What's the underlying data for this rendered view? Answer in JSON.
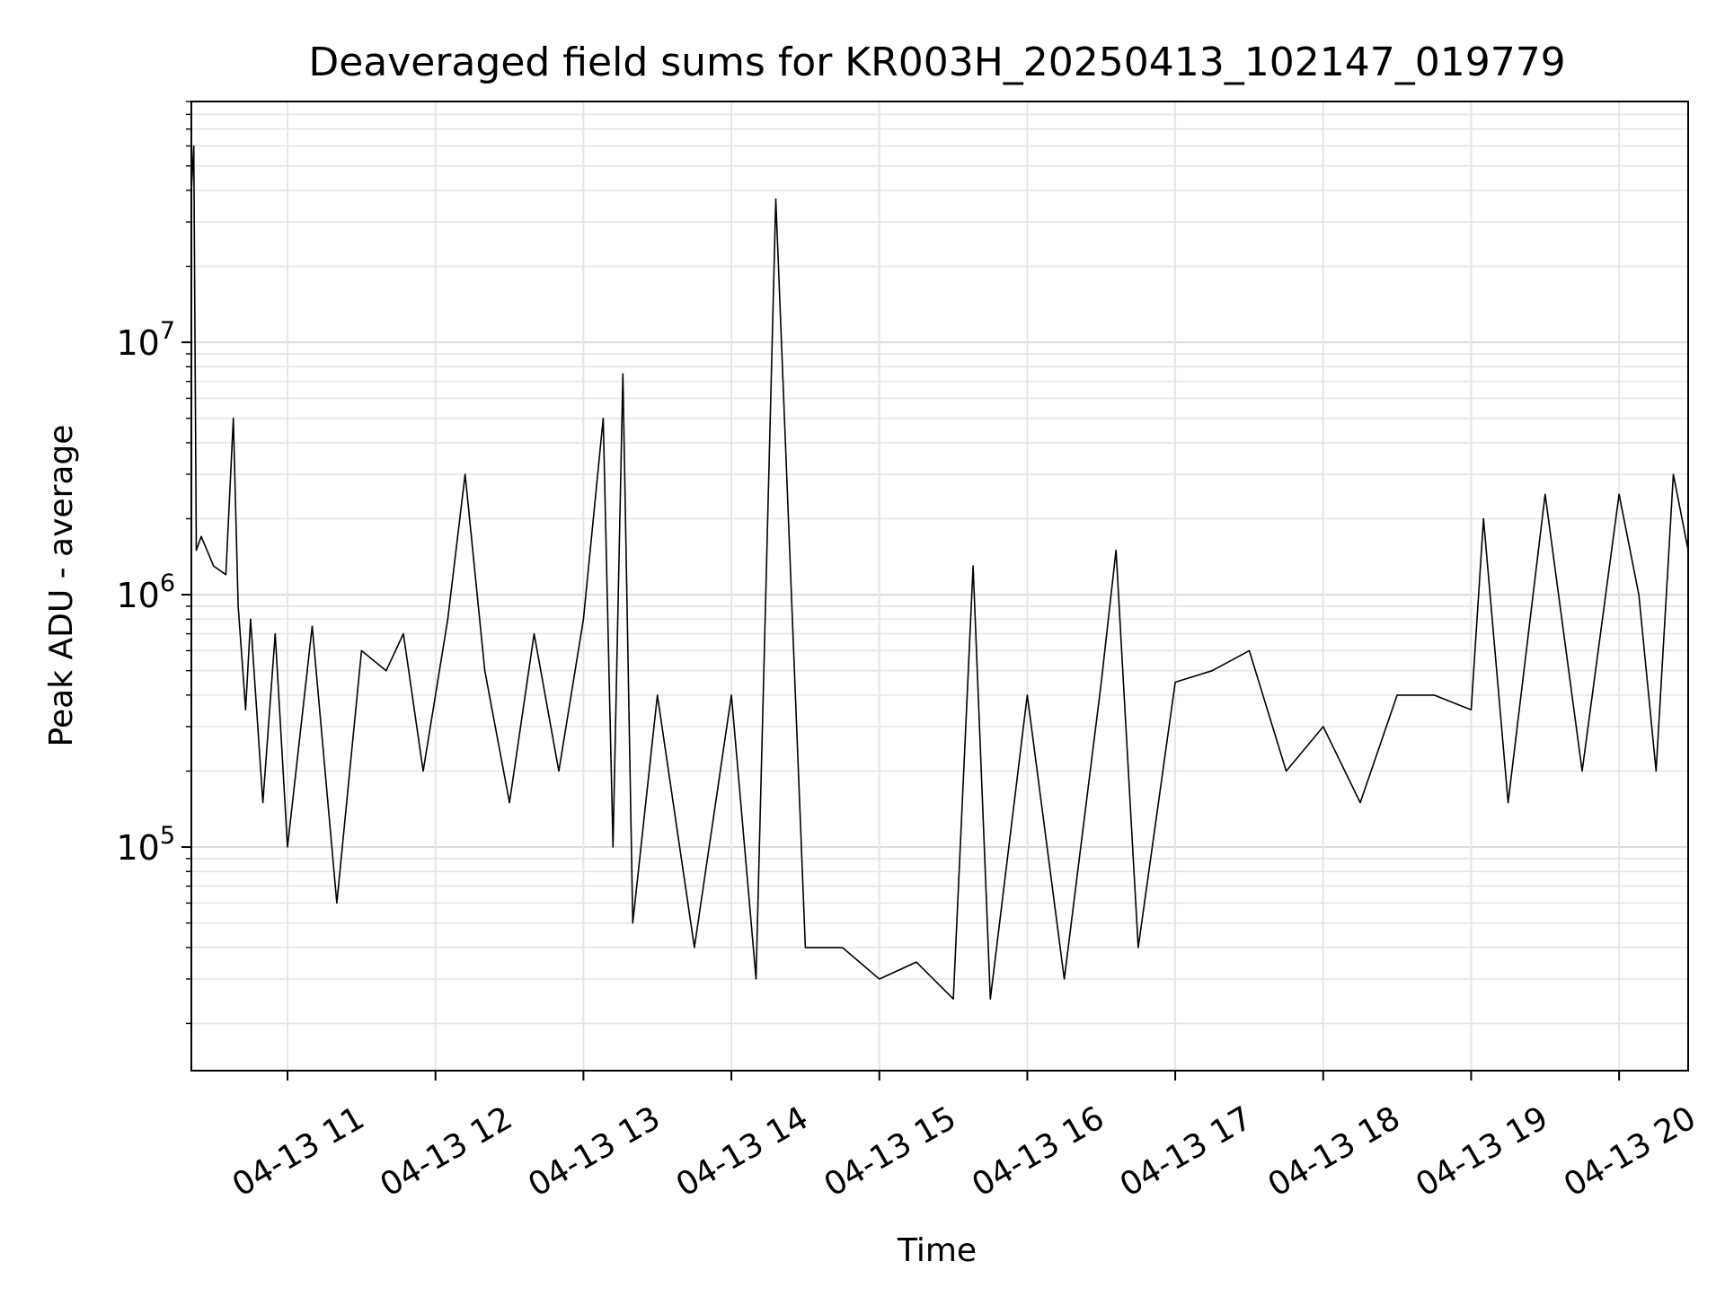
{
  "chart_data": {
    "type": "line",
    "title": "Deaveraged field sums for KR003H_20250413_102147_019779",
    "xlabel": "Time",
    "ylabel": "Peak ADU - average",
    "y_scale": "log",
    "ylim": [
      13000,
      90000000
    ],
    "xlim": [
      "2025-04-13 10:21",
      "2025-04-13 20:28"
    ],
    "grid": true,
    "line_color": "#000000",
    "x_ticks": [
      {
        "t": "2025-04-13 11:00",
        "label": "04-13 11"
      },
      {
        "t": "2025-04-13 12:00",
        "label": "04-13 12"
      },
      {
        "t": "2025-04-13 13:00",
        "label": "04-13 13"
      },
      {
        "t": "2025-04-13 14:00",
        "label": "04-13 14"
      },
      {
        "t": "2025-04-13 15:00",
        "label": "04-13 15"
      },
      {
        "t": "2025-04-13 16:00",
        "label": "04-13 16"
      },
      {
        "t": "2025-04-13 17:00",
        "label": "04-13 17"
      },
      {
        "t": "2025-04-13 18:00",
        "label": "04-13 18"
      },
      {
        "t": "2025-04-13 19:00",
        "label": "04-13 19"
      },
      {
        "t": "2025-04-13 20:00",
        "label": "04-13 20"
      }
    ],
    "y_ticks": [
      {
        "value": 100000,
        "base": "10",
        "exp": "5"
      },
      {
        "value": 1000000,
        "base": "10",
        "exp": "6"
      },
      {
        "value": 10000000,
        "base": "10",
        "exp": "7"
      }
    ],
    "series": [
      {
        "x": [
          "2025-04-13 10:21",
          "2025-04-13 10:22",
          "2025-04-13 10:23",
          "2025-04-13 10:25",
          "2025-04-13 10:30",
          "2025-04-13 10:35",
          "2025-04-13 10:38",
          "2025-04-13 10:40",
          "2025-04-13 10:43",
          "2025-04-13 10:45",
          "2025-04-13 10:50",
          "2025-04-13 10:55",
          "2025-04-13 11:00",
          "2025-04-13 11:10",
          "2025-04-13 11:20",
          "2025-04-13 11:30",
          "2025-04-13 11:40",
          "2025-04-13 11:47",
          "2025-04-13 11:55",
          "2025-04-13 12:05",
          "2025-04-13 12:12",
          "2025-04-13 12:20",
          "2025-04-13 12:30",
          "2025-04-13 12:40",
          "2025-04-13 12:50",
          "2025-04-13 13:00",
          "2025-04-13 13:08",
          "2025-04-13 13:12",
          "2025-04-13 13:16",
          "2025-04-13 13:20",
          "2025-04-13 13:30",
          "2025-04-13 13:45",
          "2025-04-13 14:00",
          "2025-04-13 14:10",
          "2025-04-13 14:18",
          "2025-04-13 14:30",
          "2025-04-13 14:45",
          "2025-04-13 15:00",
          "2025-04-13 15:15",
          "2025-04-13 15:30",
          "2025-04-13 15:38",
          "2025-04-13 15:45",
          "2025-04-13 16:00",
          "2025-04-13 16:15",
          "2025-04-13 16:30",
          "2025-04-13 16:36",
          "2025-04-13 16:45",
          "2025-04-13 17:00",
          "2025-04-13 17:15",
          "2025-04-13 17:30",
          "2025-04-13 17:45",
          "2025-04-13 18:00",
          "2025-04-13 18:15",
          "2025-04-13 18:30",
          "2025-04-13 18:45",
          "2025-04-13 19:00",
          "2025-04-13 19:05",
          "2025-04-13 19:15",
          "2025-04-13 19:30",
          "2025-04-13 19:45",
          "2025-04-13 20:00",
          "2025-04-13 20:08",
          "2025-04-13 20:15",
          "2025-04-13 20:22",
          "2025-04-13 20:28"
        ],
        "y": [
          40000000,
          60000000,
          1500000,
          1700000,
          1300000,
          1200000,
          5000000,
          900000,
          350000,
          800000,
          150000,
          700000,
          100000,
          750000,
          60000,
          600000,
          500000,
          700000,
          200000,
          800000,
          3000000,
          500000,
          150000,
          700000,
          200000,
          800000,
          5000000,
          100000,
          7500000,
          50000,
          400000,
          40000,
          400000,
          30000,
          37000000,
          40000,
          40000,
          30000,
          35000,
          25000,
          1300000,
          25000,
          400000,
          30000,
          450000,
          1500000,
          40000,
          450000,
          500000,
          600000,
          200000,
          300000,
          150000,
          400000,
          400000,
          350000,
          2000000,
          150000,
          2500000,
          200000,
          2500000,
          1000000,
          200000,
          3000000,
          1500000
        ]
      }
    ]
  }
}
